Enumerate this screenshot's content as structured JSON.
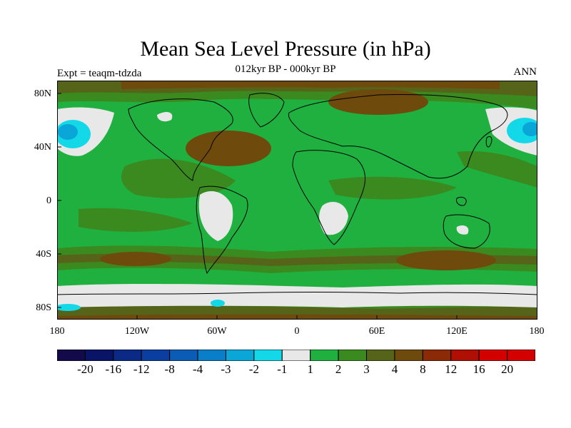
{
  "title": "Mean Sea Level Pressure (in hPa)",
  "subtitle": "012kyr BP - 000kyr BP",
  "expt": "Expt = teaqm-tdzda",
  "season": "ANN",
  "lat_labels": [
    "80N",
    "40N",
    "0",
    "40S",
    "80S"
  ],
  "lon_labels": [
    "180",
    "120W",
    "60W",
    "0",
    "60E",
    "120E",
    "180"
  ],
  "colorbar": {
    "labels": [
      "-20",
      "-16",
      "-12",
      "-8",
      "-4",
      "-3",
      "-2",
      "-1",
      "1",
      "2",
      "3",
      "4",
      "8",
      "12",
      "16",
      "20"
    ],
    "colors": [
      "#120a4a",
      "#0a1466",
      "#0a2a85",
      "#0a3fa0",
      "#0a5cb5",
      "#0a7ec8",
      "#0aa6d8",
      "#12d8e8",
      "#e8e8e8",
      "#20b040",
      "#3a8a20",
      "#556418",
      "#6e4a0c",
      "#8a2a06",
      "#b01004",
      "#d40000"
    ]
  },
  "map_colors": {
    "bin_1_2": "#20b040",
    "bin_2_3": "#3a8a20",
    "bin_3_4": "#556418",
    "bin_4_8": "#6e4a0c",
    "bin_neg1_1": "#e8e8e8",
    "bin_neg2_neg1": "#12d8e8",
    "bin_neg3_neg2": "#0aa6d8",
    "coastline": "#000000"
  }
}
